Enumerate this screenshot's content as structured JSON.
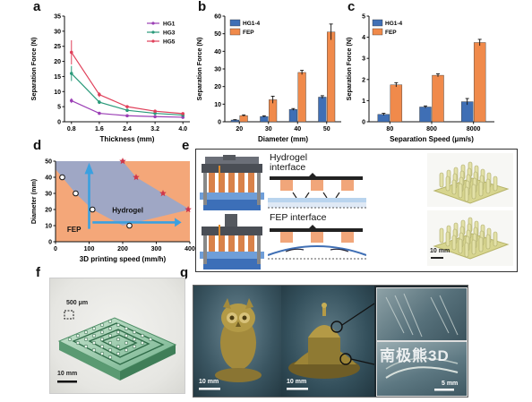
{
  "panels": {
    "a": "a",
    "b": "b",
    "c": "c",
    "d": "d",
    "e": "e",
    "f": "f",
    "g": "g"
  },
  "chart_data": [
    {
      "id": "a",
      "type": "line",
      "xlabel": "Thickness (mm)",
      "ylabel": "Separation Force (N)",
      "x": [
        0.8,
        1.6,
        2.4,
        3.2,
        4.0
      ],
      "xticks": [
        "0.8",
        "1.6",
        "2.4",
        "3.2",
        "4.0"
      ],
      "ylim": [
        0,
        35
      ],
      "yticks": [
        0,
        5,
        10,
        15,
        20,
        25,
        30,
        35
      ],
      "legend_position": "top-right",
      "series": [
        {
          "name": "HG1",
          "color": "#9b3fb5",
          "values": [
            7.0,
            2.8,
            2.0,
            1.7,
            1.5
          ],
          "err": [
            0.8,
            0.3,
            0.2,
            0.2,
            0.2
          ]
        },
        {
          "name": "HG3",
          "color": "#2a9a7a",
          "values": [
            16,
            6.5,
            3.8,
            2.8,
            2.2
          ],
          "err": [
            2.5,
            0.6,
            0.4,
            0.3,
            0.3
          ]
        },
        {
          "name": "HG5",
          "color": "#e0405a",
          "values": [
            23,
            9,
            5,
            3.5,
            2.7
          ],
          "err": [
            4,
            0.8,
            0.5,
            0.4,
            0.3
          ]
        }
      ]
    },
    {
      "id": "b",
      "type": "bar",
      "xlabel": "Diameter (mm)",
      "ylabel": "Separation Force (N)",
      "categories": [
        "20",
        "30",
        "40",
        "50"
      ],
      "ylim": [
        0,
        60
      ],
      "yticks": [
        0,
        10,
        20,
        30,
        40,
        50,
        60
      ],
      "legend_position": "top-left",
      "series": [
        {
          "name": "HG1-4",
          "color": "#3f6fb5",
          "values": [
            1.0,
            3.0,
            7.0,
            14.0
          ],
          "err": [
            0.2,
            0.4,
            0.5,
            0.8
          ]
        },
        {
          "name": "FEP",
          "color": "#f08a4b",
          "values": [
            3.5,
            12.5,
            28,
            51
          ],
          "err": [
            0.4,
            2.0,
            1.2,
            4.5
          ]
        }
      ]
    },
    {
      "id": "c",
      "type": "bar",
      "xlabel": "Separation Speed (μm/s)",
      "ylabel": "Separation Force (N)",
      "categories": [
        "80",
        "800",
        "8000"
      ],
      "ylim": [
        0,
        5
      ],
      "yticks": [
        0,
        1,
        2,
        3,
        4,
        5
      ],
      "legend_position": "top-left",
      "series": [
        {
          "name": "HG1-4",
          "color": "#3f6fb5",
          "values": [
            0.35,
            0.7,
            0.95
          ],
          "err": [
            0.05,
            0.05,
            0.15
          ]
        },
        {
          "name": "FEP",
          "color": "#f08a4b",
          "values": [
            1.75,
            2.2,
            3.75
          ],
          "err": [
            0.1,
            0.07,
            0.15
          ]
        }
      ]
    },
    {
      "id": "d",
      "type": "scatter",
      "xlabel": "3D printing speed (mm/h)",
      "ylabel": "Diameter (mm)",
      "xlim": [
        0,
        400
      ],
      "ylim": [
        0,
        50
      ],
      "xticks": [
        0,
        100,
        200,
        300,
        400
      ],
      "yticks": [
        0,
        10,
        20,
        30,
        40,
        50
      ],
      "region_labels": [
        "Hydrogel",
        "FEP"
      ],
      "circles": [
        {
          "x": 20,
          "y": 40
        },
        {
          "x": 60,
          "y": 30
        },
        {
          "x": 110,
          "y": 20
        },
        {
          "x": 220,
          "y": 10
        }
      ],
      "stars": [
        {
          "x": 200,
          "y": 50
        },
        {
          "x": 240,
          "y": 40
        },
        {
          "x": 320,
          "y": 30
        },
        {
          "x": 395,
          "y": 20
        }
      ]
    }
  ],
  "panel_e": {
    "hydrogel_label": "Hydrogel\ninterface",
    "fep_label": "FEP interface",
    "scalebar": "10 mm"
  },
  "panel_f": {
    "inset_label": "500 μm",
    "scalebar": "10 mm"
  },
  "panel_g": {
    "scalebar1": "10 mm",
    "scalebar2": "10 mm",
    "scalebar3": "5 mm",
    "watermark": "南极熊3D"
  }
}
